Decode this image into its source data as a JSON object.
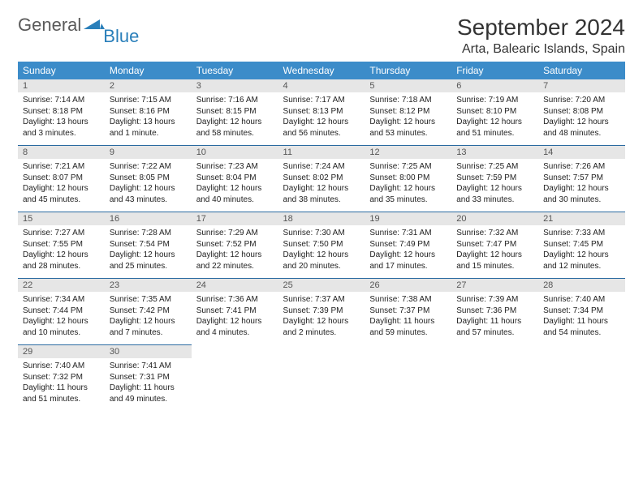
{
  "logo": {
    "word1": "General",
    "word2": "Blue"
  },
  "title": "September 2024",
  "location": "Arta, Balearic Islands, Spain",
  "colors": {
    "header_bg": "#3c8cc9",
    "header_text": "#ffffff",
    "daynum_bg": "#e6e6e6",
    "row_border": "#2a6aa0",
    "logo_gray": "#5a5a5a",
    "logo_blue": "#2a7fba"
  },
  "weekdays": [
    "Sunday",
    "Monday",
    "Tuesday",
    "Wednesday",
    "Thursday",
    "Friday",
    "Saturday"
  ],
  "days": [
    {
      "n": 1,
      "sr": "7:14 AM",
      "ss": "8:18 PM",
      "dl": "13 hours and 3 minutes."
    },
    {
      "n": 2,
      "sr": "7:15 AM",
      "ss": "8:16 PM",
      "dl": "13 hours and 1 minute."
    },
    {
      "n": 3,
      "sr": "7:16 AM",
      "ss": "8:15 PM",
      "dl": "12 hours and 58 minutes."
    },
    {
      "n": 4,
      "sr": "7:17 AM",
      "ss": "8:13 PM",
      "dl": "12 hours and 56 minutes."
    },
    {
      "n": 5,
      "sr": "7:18 AM",
      "ss": "8:12 PM",
      "dl": "12 hours and 53 minutes."
    },
    {
      "n": 6,
      "sr": "7:19 AM",
      "ss": "8:10 PM",
      "dl": "12 hours and 51 minutes."
    },
    {
      "n": 7,
      "sr": "7:20 AM",
      "ss": "8:08 PM",
      "dl": "12 hours and 48 minutes."
    },
    {
      "n": 8,
      "sr": "7:21 AM",
      "ss": "8:07 PM",
      "dl": "12 hours and 45 minutes."
    },
    {
      "n": 9,
      "sr": "7:22 AM",
      "ss": "8:05 PM",
      "dl": "12 hours and 43 minutes."
    },
    {
      "n": 10,
      "sr": "7:23 AM",
      "ss": "8:04 PM",
      "dl": "12 hours and 40 minutes."
    },
    {
      "n": 11,
      "sr": "7:24 AM",
      "ss": "8:02 PM",
      "dl": "12 hours and 38 minutes."
    },
    {
      "n": 12,
      "sr": "7:25 AM",
      "ss": "8:00 PM",
      "dl": "12 hours and 35 minutes."
    },
    {
      "n": 13,
      "sr": "7:25 AM",
      "ss": "7:59 PM",
      "dl": "12 hours and 33 minutes."
    },
    {
      "n": 14,
      "sr": "7:26 AM",
      "ss": "7:57 PM",
      "dl": "12 hours and 30 minutes."
    },
    {
      "n": 15,
      "sr": "7:27 AM",
      "ss": "7:55 PM",
      "dl": "12 hours and 28 minutes."
    },
    {
      "n": 16,
      "sr": "7:28 AM",
      "ss": "7:54 PM",
      "dl": "12 hours and 25 minutes."
    },
    {
      "n": 17,
      "sr": "7:29 AM",
      "ss": "7:52 PM",
      "dl": "12 hours and 22 minutes."
    },
    {
      "n": 18,
      "sr": "7:30 AM",
      "ss": "7:50 PM",
      "dl": "12 hours and 20 minutes."
    },
    {
      "n": 19,
      "sr": "7:31 AM",
      "ss": "7:49 PM",
      "dl": "12 hours and 17 minutes."
    },
    {
      "n": 20,
      "sr": "7:32 AM",
      "ss": "7:47 PM",
      "dl": "12 hours and 15 minutes."
    },
    {
      "n": 21,
      "sr": "7:33 AM",
      "ss": "7:45 PM",
      "dl": "12 hours and 12 minutes."
    },
    {
      "n": 22,
      "sr": "7:34 AM",
      "ss": "7:44 PM",
      "dl": "12 hours and 10 minutes."
    },
    {
      "n": 23,
      "sr": "7:35 AM",
      "ss": "7:42 PM",
      "dl": "12 hours and 7 minutes."
    },
    {
      "n": 24,
      "sr": "7:36 AM",
      "ss": "7:41 PM",
      "dl": "12 hours and 4 minutes."
    },
    {
      "n": 25,
      "sr": "7:37 AM",
      "ss": "7:39 PM",
      "dl": "12 hours and 2 minutes."
    },
    {
      "n": 26,
      "sr": "7:38 AM",
      "ss": "7:37 PM",
      "dl": "11 hours and 59 minutes."
    },
    {
      "n": 27,
      "sr": "7:39 AM",
      "ss": "7:36 PM",
      "dl": "11 hours and 57 minutes."
    },
    {
      "n": 28,
      "sr": "7:40 AM",
      "ss": "7:34 PM",
      "dl": "11 hours and 54 minutes."
    },
    {
      "n": 29,
      "sr": "7:40 AM",
      "ss": "7:32 PM",
      "dl": "11 hours and 51 minutes."
    },
    {
      "n": 30,
      "sr": "7:41 AM",
      "ss": "7:31 PM",
      "dl": "11 hours and 49 minutes."
    }
  ],
  "labels": {
    "sunrise": "Sunrise:",
    "sunset": "Sunset:",
    "daylight": "Daylight:"
  },
  "layout": {
    "cols": 7,
    "rows": 5,
    "first_weekday_index": 0
  }
}
